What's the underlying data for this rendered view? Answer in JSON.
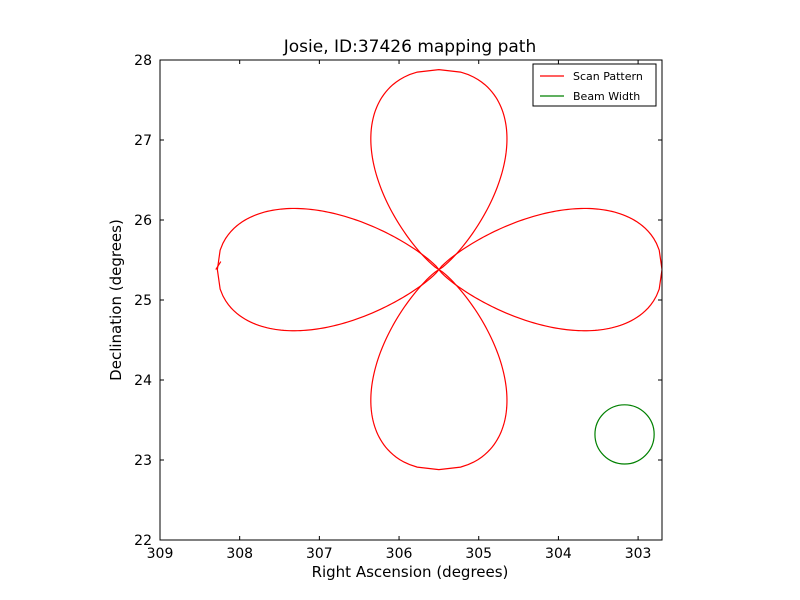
{
  "chart_data": {
    "type": "line",
    "title": "Josie, ID:37426 mapping path",
    "xlabel": "Right Ascension (degrees)",
    "ylabel": "Declination (degrees)",
    "xlim": [
      309.0,
      302.7
    ],
    "ylim": [
      22,
      28
    ],
    "x_ticks": [
      309,
      308,
      307,
      306,
      305,
      304,
      303
    ],
    "y_ticks": [
      22,
      23,
      24,
      25,
      26,
      27,
      28
    ],
    "grid": false,
    "legend_position": "top-right",
    "series": [
      {
        "name": "Scan Pattern",
        "color": "#ff0000",
        "shape": "four-petal rose",
        "center": [
          305.5,
          25.38
        ],
        "petals": [
          {
            "direction": "north",
            "tip": [
              305.5,
              27.88
            ],
            "max_half_width_deg": 0.76
          },
          {
            "direction": "south",
            "tip": [
              305.5,
              22.88
            ],
            "max_half_width_deg": 0.76
          },
          {
            "direction": "east",
            "tip": [
              302.7,
              25.38
            ],
            "max_half_height_deg": 0.68
          },
          {
            "direction": "west",
            "tip": [
              308.28,
              25.38
            ],
            "max_half_height_deg": 0.68
          }
        ],
        "start_point": [
          308.3,
          25.38
        ]
      },
      {
        "name": "Beam Width",
        "color": "#008000",
        "shape": "circle",
        "center": [
          303.17,
          23.32
        ],
        "radius_deg": 0.37
      }
    ]
  }
}
